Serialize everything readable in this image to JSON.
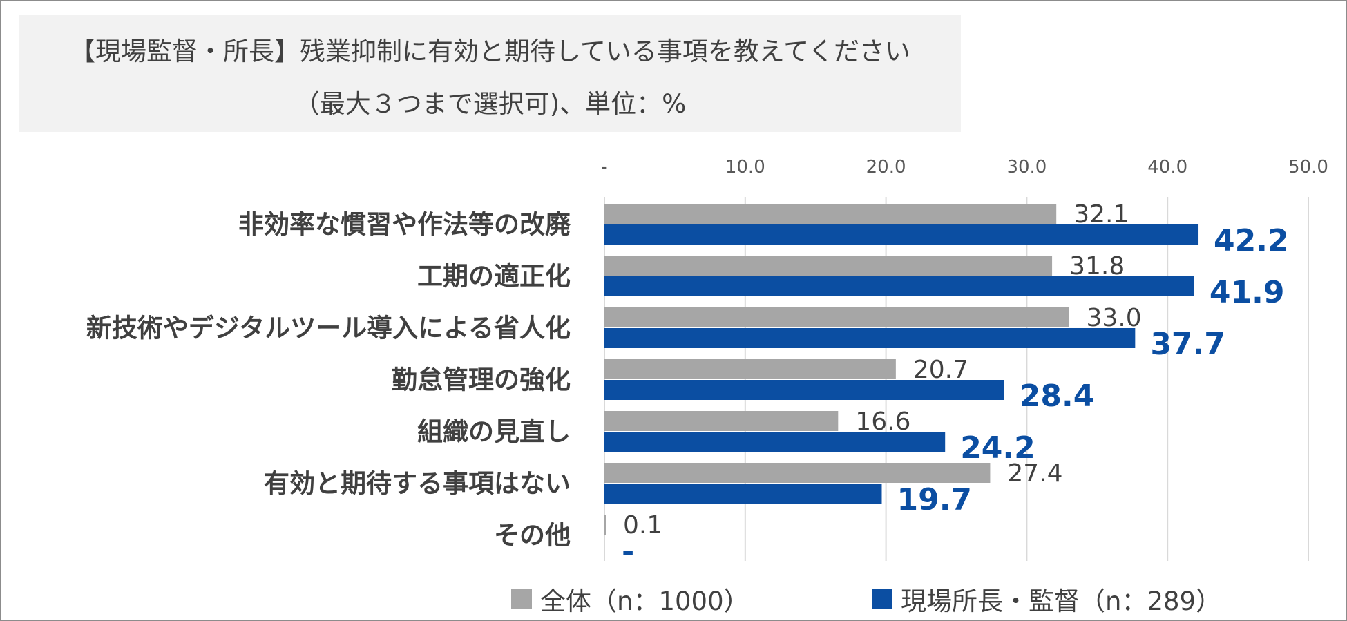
{
  "chart_data": {
    "type": "bar",
    "orientation": "horizontal",
    "title": "【現場監督・所長】残業抑制に有効と期待している事項を教えてください",
    "subtitle": "（最大３つまで選択可)、単位：%",
    "categories": [
      "非効率な慣習や作法等の改廃",
      "工期の適正化",
      "新技術やデジタルツール導入による省人化",
      "勤怠管理の強化",
      "組織の見直し",
      "有効と期待する事項はない",
      "その他"
    ],
    "series": [
      {
        "name": "全体（n：1000）",
        "values": [
          32.1,
          31.8,
          33.0,
          20.7,
          16.6,
          27.4,
          0.1
        ],
        "labels": [
          "32.1",
          "31.8",
          "33.0",
          "20.7",
          "16.6",
          "27.4",
          "0.1"
        ],
        "color": "#a6a6a6"
      },
      {
        "name": "現場所長・監督（n：289）",
        "values": [
          42.2,
          41.9,
          37.7,
          28.4,
          24.2,
          19.7,
          0
        ],
        "labels": [
          "42.2",
          "41.9",
          "37.7",
          "28.4",
          "24.2",
          "19.7",
          "-"
        ],
        "color": "#0b4ea2"
      }
    ],
    "xlim": [
      0,
      50
    ],
    "xticks": [
      0,
      10,
      20,
      30,
      40,
      50
    ],
    "xtick_labels": [
      "-",
      "10.0",
      "20.0",
      "30.0",
      "40.0",
      "50.0"
    ],
    "xaxis_position": "top",
    "grid": true,
    "legend_position": "bottom"
  }
}
